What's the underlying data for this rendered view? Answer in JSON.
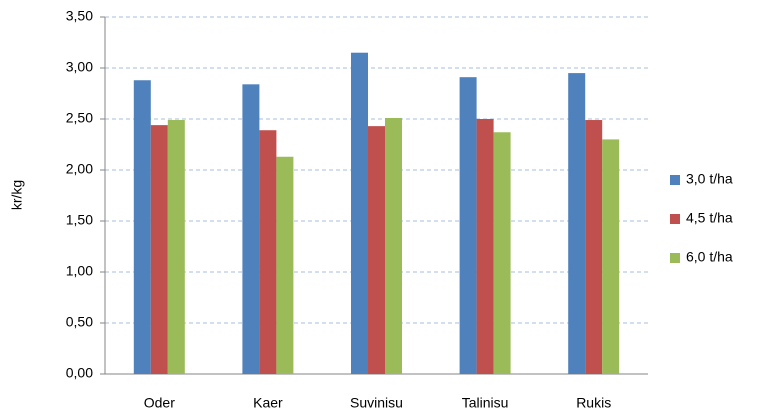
{
  "chart_data": {
    "type": "bar",
    "y_label": "kr/kg",
    "categories": [
      "Oder",
      "Kaer",
      "Suvinisu",
      "Talinisu",
      "Rukis"
    ],
    "series": [
      {
        "name": "3,0 t/ha",
        "color": "#4f81bd",
        "values": [
          2.88,
          2.84,
          3.15,
          2.91,
          2.95
        ]
      },
      {
        "name": "4,5 t/ha",
        "color": "#c0504d",
        "values": [
          2.44,
          2.39,
          2.43,
          2.5,
          2.49
        ]
      },
      {
        "name": "6,0 t/ha",
        "color": "#9bbb59",
        "values": [
          2.49,
          2.13,
          2.51,
          2.37,
          2.3
        ]
      }
    ],
    "ylim": [
      0,
      3.5
    ],
    "yticks": [
      {
        "value": 0,
        "label": "0,00"
      },
      {
        "value": 0.5,
        "label": "0,50"
      },
      {
        "value": 1,
        "label": "1,00"
      },
      {
        "value": 1.5,
        "label": "1,50"
      },
      {
        "value": 2,
        "label": "2,00"
      },
      {
        "value": 2.5,
        "label": "2,50"
      },
      {
        "value": 3,
        "label": "3,00"
      },
      {
        "value": 3.5,
        "label": "3,50"
      }
    ],
    "grid": true,
    "legend": "right"
  }
}
